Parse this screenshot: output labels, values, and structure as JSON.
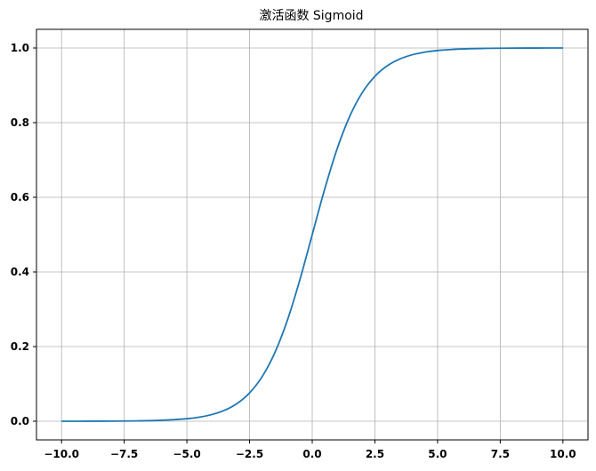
{
  "chart_data": {
    "type": "line",
    "title": "激活函数 Sigmoid",
    "xlabel": "",
    "ylabel": "",
    "xlim": [
      -11.0,
      11.0
    ],
    "ylim": [
      -0.05,
      1.05
    ],
    "grid": true,
    "x_ticks": [
      -10.0,
      -7.5,
      -5.0,
      -2.5,
      0.0,
      2.5,
      5.0,
      7.5,
      10.0
    ],
    "x_tick_labels": [
      "−10.0",
      "−7.5",
      "−5.0",
      "−2.5",
      "0.0",
      "2.5",
      "5.0",
      "7.5",
      "10.0"
    ],
    "y_ticks": [
      0.0,
      0.2,
      0.4,
      0.6,
      0.8,
      1.0
    ],
    "y_tick_labels": [
      "0.0",
      "0.2",
      "0.4",
      "0.6",
      "0.8",
      "1.0"
    ],
    "series": [
      {
        "color": "#1f77b4",
        "x": [
          -10,
          -9,
          -8,
          -7,
          -6,
          -5,
          -4.5,
          -4,
          -3.5,
          -3,
          -2.5,
          -2,
          -1.5,
          -1,
          -0.5,
          0,
          0.5,
          1,
          1.5,
          2,
          2.5,
          3,
          3.5,
          4,
          4.5,
          5,
          6,
          7,
          8,
          9,
          10
        ],
        "y": [
          0.0,
          0.0001,
          0.0003,
          0.0009,
          0.0025,
          0.0067,
          0.011,
          0.018,
          0.0293,
          0.0474,
          0.0759,
          0.1192,
          0.1824,
          0.2689,
          0.3775,
          0.5,
          0.6225,
          0.7311,
          0.8176,
          0.8808,
          0.9241,
          0.9526,
          0.9707,
          0.982,
          0.989,
          0.9933,
          0.9975,
          0.9991,
          0.9997,
          0.9999,
          1.0
        ]
      }
    ]
  }
}
